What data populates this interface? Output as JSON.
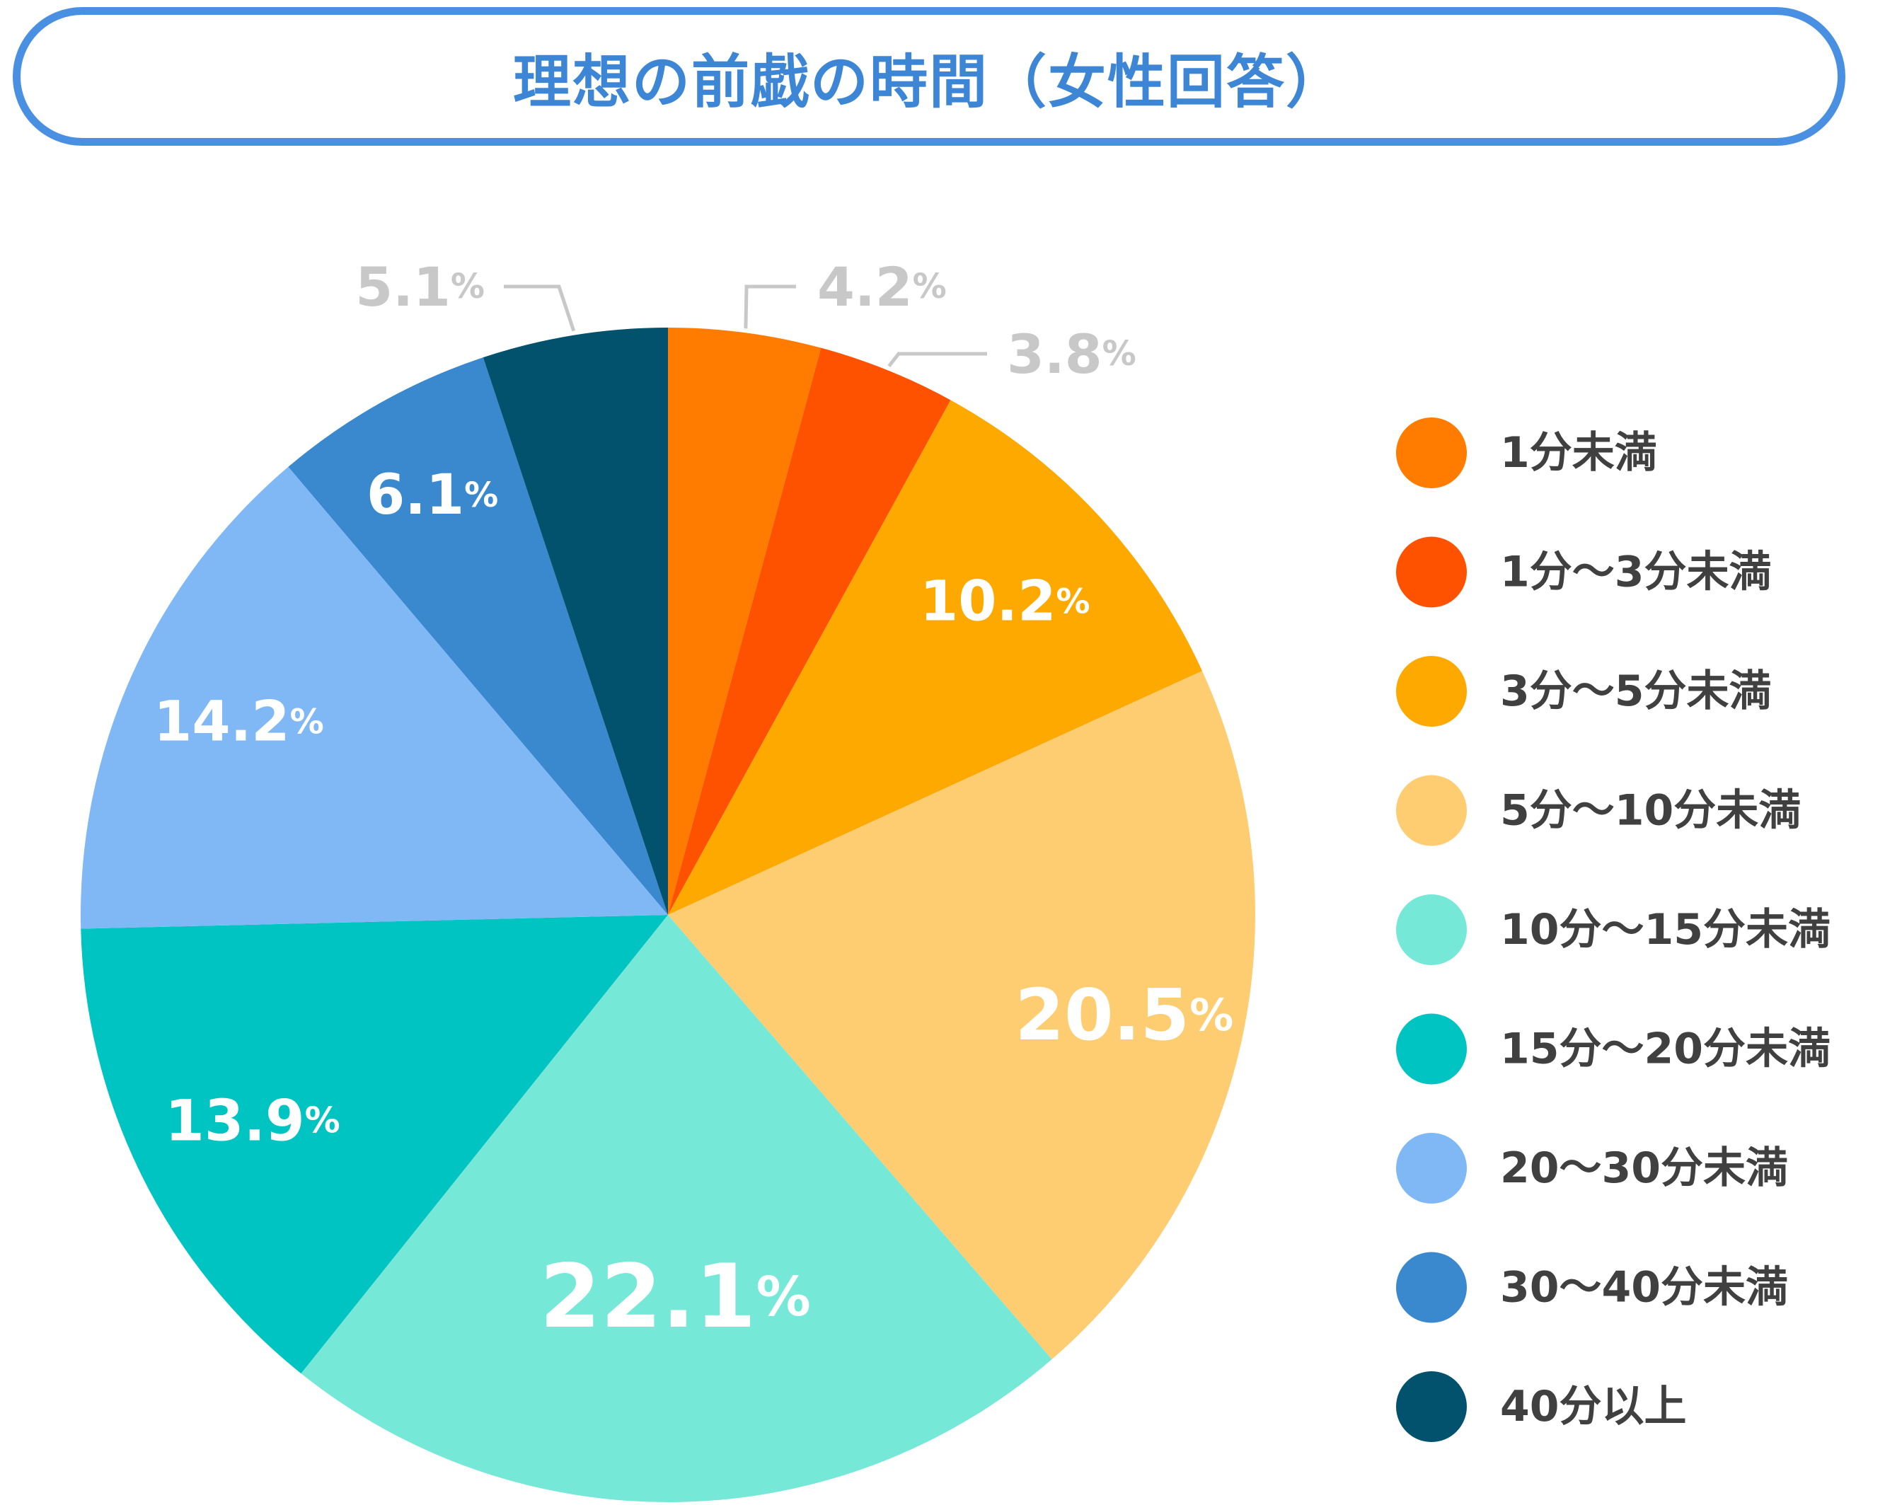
{
  "chart_data": {
    "type": "pie",
    "title": "理想の前戯の時間（女性回答）",
    "unit": "%",
    "slices": [
      {
        "label": "1分未満",
        "value": 4.2,
        "color": "#ff7c00"
      },
      {
        "label": "1分〜3分未満",
        "value": 3.8,
        "color": "#ff5200"
      },
      {
        "label": "3分〜5分未満",
        "value": 10.2,
        "color": "#fda900"
      },
      {
        "label": "5分〜10分未満",
        "value": 20.5,
        "color": "#fecd72"
      },
      {
        "label": "10分〜15分未満",
        "value": 22.1,
        "color": "#76e8d8"
      },
      {
        "label": "15分〜20分未満",
        "value": 13.9,
        "color": "#00c4c1"
      },
      {
        "label": "20〜30分未満",
        "value": 14.2,
        "color": "#80b8f6"
      },
      {
        "label": "30〜40分未満",
        "value": 6.1,
        "color": "#3a88ce"
      },
      {
        "label": "40分以上",
        "value": 5.1,
        "color": "#03526d"
      }
    ],
    "legend_position": "right"
  }
}
